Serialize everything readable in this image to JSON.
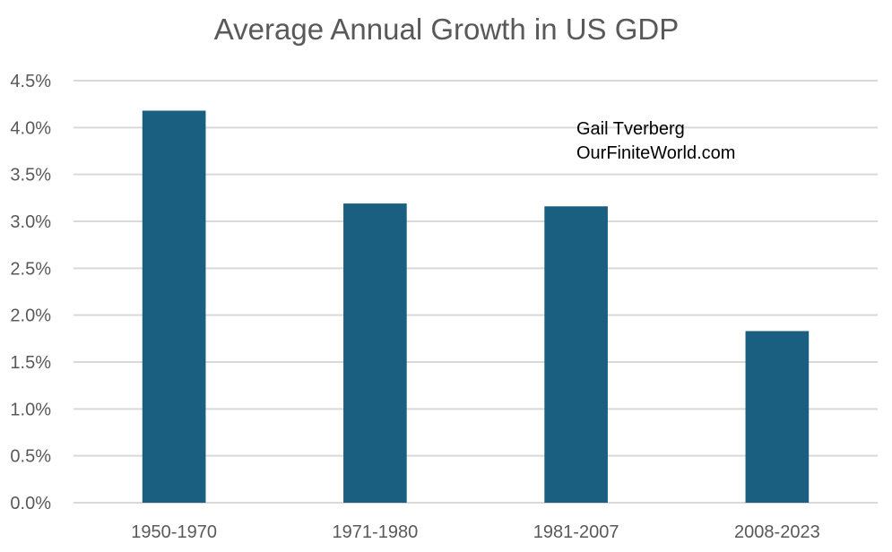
{
  "chart_data": {
    "type": "bar",
    "title": "Average Annual Growth in US GDP",
    "xlabel": "",
    "ylabel": "",
    "categories": [
      "1950-1970",
      "1971-1980",
      "1981-2007",
      "2008-2023"
    ],
    "values": [
      4.18,
      3.19,
      3.16,
      1.83
    ],
    "value_unit": "%",
    "ylim": [
      0,
      4.5
    ],
    "yticks": [
      0,
      0.5,
      1.0,
      1.5,
      2.0,
      2.5,
      3.0,
      3.5,
      4.0,
      4.5
    ],
    "ytick_labels": [
      "0.0%",
      "0.5%",
      "1.0%",
      "1.5%",
      "2.0%",
      "2.5%",
      "3.0%",
      "3.5%",
      "4.0%",
      "4.5%"
    ],
    "grid": "horizontal",
    "legend": "none",
    "bar_color": "#1a5f80",
    "gridline_color": "#d9d9d9",
    "text_color": "#595959",
    "annotations": [
      "Gail Tverberg",
      "OurFiniteWorld.com"
    ],
    "annotation_placement": "top-right"
  }
}
